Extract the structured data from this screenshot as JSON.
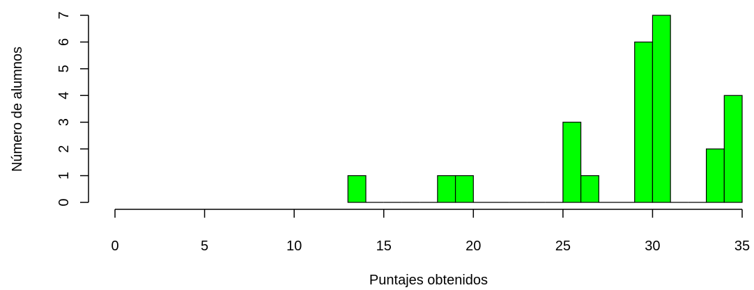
{
  "chart_data": {
    "type": "bar",
    "title": "",
    "xlabel": "Puntajes obtenidos",
    "ylabel": "Número de alumnos",
    "xlim": [
      0,
      35
    ],
    "ylim": [
      0,
      7
    ],
    "bin_width": 1,
    "bins_start": [
      13,
      14,
      15,
      16,
      17,
      18,
      19,
      20,
      21,
      22,
      23,
      24,
      25,
      26,
      27,
      28,
      29,
      30,
      31,
      32,
      33,
      34
    ],
    "values": [
      1,
      0,
      0,
      0,
      0,
      1,
      1,
      0,
      0,
      0,
      0,
      0,
      3,
      1,
      0,
      0,
      6,
      7,
      0,
      0,
      2,
      4
    ],
    "x_ticks": [
      0,
      5,
      10,
      15,
      20,
      25,
      30,
      35
    ],
    "y_ticks": [
      0,
      1,
      2,
      3,
      4,
      5,
      6,
      7
    ],
    "bar_color": "#00ff00",
    "grid": false
  }
}
